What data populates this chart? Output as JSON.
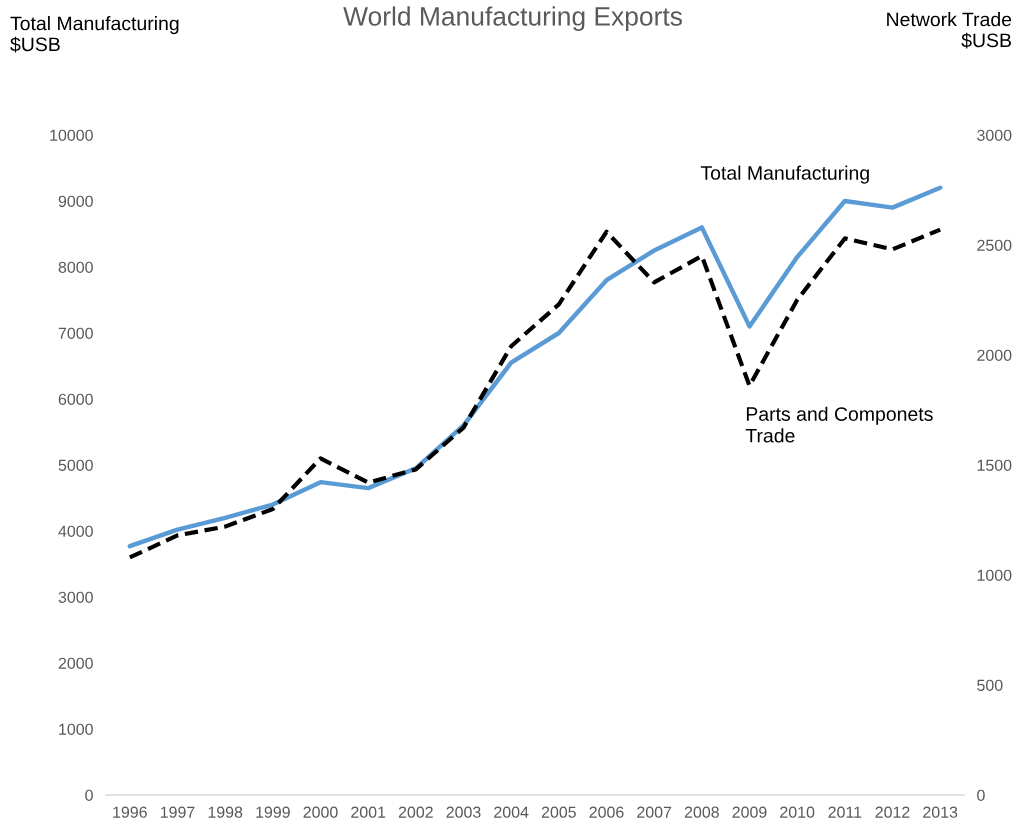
{
  "chart_data": {
    "type": "line",
    "title": "World Manufacturing Exports",
    "ylabel": "Total Manufacturing\n$USB",
    "y2label": "Network Trade\n$USB",
    "categories": [
      "1996",
      "1997",
      "1998",
      "1999",
      "2000",
      "2001",
      "2002",
      "2003",
      "2004",
      "2005",
      "2006",
      "2007",
      "2008",
      "2009",
      "2010",
      "2011",
      "2012",
      "2013"
    ],
    "series": [
      {
        "name": "Total Manufacturing",
        "color": "#5b9bd5",
        "line_style": "solid",
        "values": [
          3770,
          4020,
          4200,
          4400,
          4740,
          4650,
          4950,
          5600,
          6550,
          7000,
          7800,
          8250,
          8600,
          7100,
          8150,
          9000,
          8900,
          9200
        ]
      },
      {
        "name": "Parts and Componets\nTrade",
        "color": "#000000",
        "line_style": "dashed",
        "axis": "y2",
        "values": [
          1080,
          1180,
          1220,
          1300,
          1530,
          1420,
          1480,
          1670,
          2040,
          2230,
          2560,
          2330,
          2450,
          1860,
          2250,
          2530,
          2480,
          2570
        ]
      }
    ],
    "ylim": [
      0,
      10000
    ],
    "yticks": [
      0,
      1000,
      2000,
      3000,
      4000,
      5000,
      6000,
      7000,
      8000,
      9000,
      10000
    ],
    "y2lim": [
      0,
      3000
    ],
    "y2ticks": [
      0,
      500,
      1000,
      1500,
      2000,
      2500,
      3000
    ],
    "grid": false,
    "legend": false,
    "marker": "none"
  }
}
